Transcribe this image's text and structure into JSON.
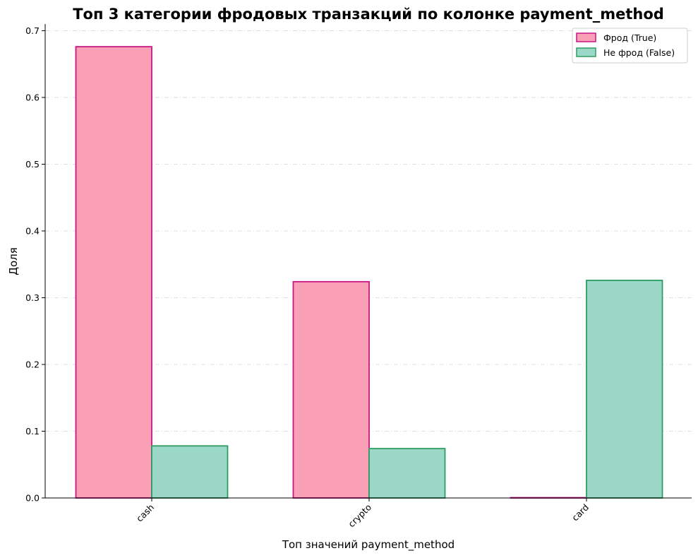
{
  "chart_data": {
    "type": "bar",
    "title": "Топ 3 категории фродовых транзакций по колонке payment_method",
    "xlabel": "Топ значений payment_method",
    "ylabel": "Доля",
    "categories": [
      "cash",
      "crypto",
      "card"
    ],
    "series": [
      {
        "name": "Фрод (True)",
        "values": [
          0.676,
          0.324,
          0.0005
        ],
        "fill": "#f9a0b7",
        "edge": "#c71585"
      },
      {
        "name": "Не фрод (False)",
        "values": [
          0.078,
          0.074,
          0.326
        ],
        "fill": "#9bd8c8",
        "edge": "#2e9e62"
      }
    ],
    "ylim": [
      0,
      0.71
    ],
    "yticks": [
      "0.0",
      "0.1",
      "0.2",
      "0.3",
      "0.4",
      "0.5",
      "0.6",
      "0.7"
    ],
    "grid": "y-dash-dot",
    "legend_position": "top-right",
    "xtick_rotation": 45
  }
}
